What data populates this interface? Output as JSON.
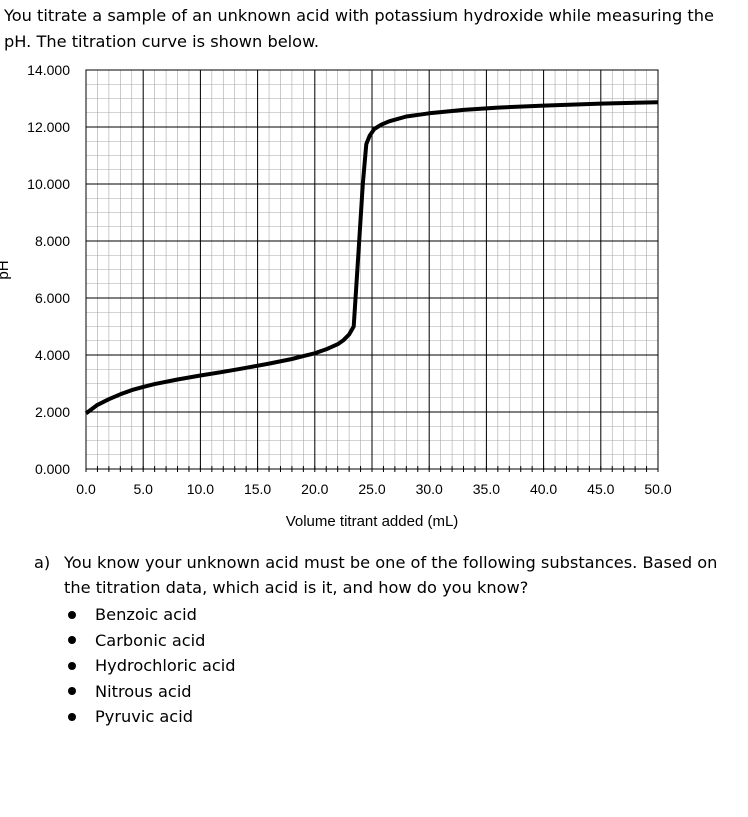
{
  "intro": "You titrate a sample of an unknown acid with potassium hydroxide while measuring the pH. The titration curve is shown below.",
  "chart_data": {
    "type": "line",
    "title": "",
    "xlabel": "Volume titrant added (mL)",
    "ylabel": "pH",
    "xlim": [
      0,
      50
    ],
    "ylim": [
      0,
      14
    ],
    "grid": true,
    "x_ticks": [
      "0.0",
      "5.0",
      "10.0",
      "15.0",
      "20.0",
      "25.0",
      "30.0",
      "35.0",
      "40.0",
      "45.0",
      "50.0"
    ],
    "y_ticks": [
      "0.000",
      "2.000",
      "4.000",
      "6.000",
      "8.000",
      "10.000",
      "12.000",
      "14.000"
    ],
    "series": [
      {
        "color": "#000000",
        "x": [
          0,
          1,
          2,
          3,
          4,
          5,
          6,
          8,
          10,
          12,
          14,
          16,
          18,
          19,
          20,
          21,
          22,
          22.5,
          23,
          23.4,
          23.8,
          24.2,
          24.5,
          24.8,
          25.2,
          25.8,
          26.5,
          28,
          30,
          33,
          36,
          40,
          45,
          50
        ],
        "y": [
          1.95,
          2.25,
          2.45,
          2.62,
          2.77,
          2.88,
          2.98,
          3.14,
          3.28,
          3.41,
          3.55,
          3.7,
          3.86,
          3.96,
          4.06,
          4.2,
          4.38,
          4.52,
          4.72,
          5.0,
          7.5,
          10.0,
          11.4,
          11.7,
          11.93,
          12.08,
          12.2,
          12.37,
          12.48,
          12.6,
          12.68,
          12.75,
          12.82,
          12.87
        ]
      }
    ]
  },
  "question": {
    "letter": "a)",
    "text": "You know your unknown acid must be one of the following substances. Based on the titration data, which acid is it, and how do you know?",
    "options": [
      "Benzoic acid",
      "Carbonic acid",
      "Hydrochloric acid",
      "Nitrous acid",
      "Pyruvic acid"
    ]
  }
}
